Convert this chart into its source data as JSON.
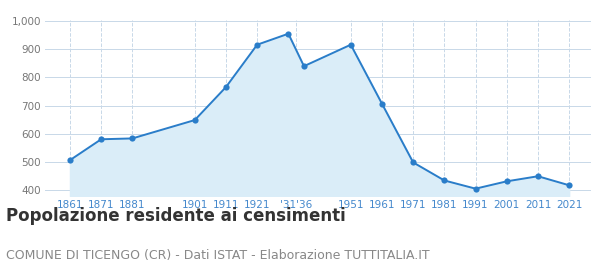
{
  "years": [
    1861,
    1871,
    1881,
    1901,
    1911,
    1921,
    1931,
    1936,
    1951,
    1961,
    1971,
    1981,
    1991,
    2001,
    2011,
    2021
  ],
  "population": [
    507,
    581,
    584,
    649,
    766,
    916,
    955,
    840,
    916,
    707,
    499,
    435,
    406,
    432,
    450,
    418
  ],
  "tick_positions": [
    1861,
    1871,
    1881,
    1901,
    1911,
    1921,
    1933.5,
    1951,
    1961,
    1971,
    1981,
    1991,
    2001,
    2011,
    2021
  ],
  "tick_labels": [
    "1861",
    "1871",
    "1881",
    "1901",
    "1911",
    "1921",
    "'31'36",
    "1951",
    "1961",
    "1971",
    "1981",
    "1991",
    "2001",
    "2011",
    "2021"
  ],
  "ylim_bottom": 380,
  "ylim_top": 1005,
  "yticks": [
    400,
    500,
    600,
    700,
    800,
    900,
    1000
  ],
  "ytick_labels": [
    "400",
    "500",
    "600",
    "700",
    "800",
    "900",
    "1,000"
  ],
  "line_color": "#2a7dc9",
  "fill_color": "#daedf8",
  "marker_color": "#2a7dc9",
  "grid_color": "#c8d8e8",
  "bg_color": "#ffffff",
  "title": "Popolazione residente ai censimenti",
  "subtitle": "COMUNE DI TICENGO (CR) - Dati ISTAT - Elaborazione TUTTITALIA.IT",
  "title_fontsize": 12,
  "subtitle_fontsize": 9,
  "xlim_left": 1853,
  "xlim_right": 2028
}
